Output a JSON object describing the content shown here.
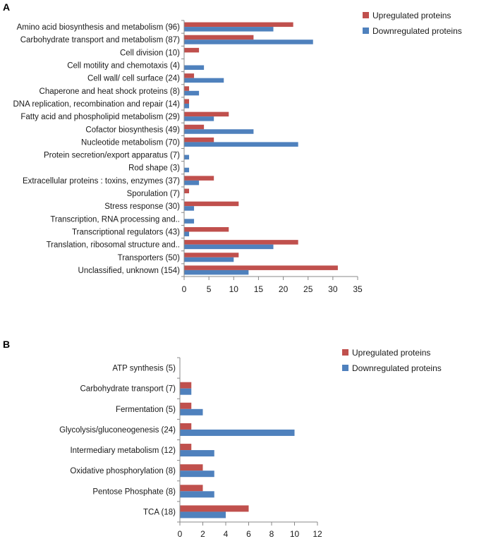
{
  "chart_data": [
    {
      "type": "bar",
      "orientation": "horizontal",
      "panel_label": "A",
      "categories": [
        "Amino acid biosynthesis and metabolism (96)",
        "Carbohydrate transport and metabolism (87)",
        "Cell division (10)",
        "Cell motility and chemotaxis (4)",
        "Cell wall/ cell surface (24)",
        "Chaperone and heat shock proteins (8)",
        "DNA replication, recombination and repair (14)",
        "Fatty acid and phospholipid metabolism (29)",
        "Cofactor biosynthesis (49)",
        "Nucleotide metabolism (70)",
        "Protein secretion/export apparatus (7)",
        "Rod shape (3)",
        "Extracellular proteins : toxins, enzymes (37)",
        "Sporulation (7)",
        "Stress response (30)",
        "Transcription, RNA processing and..",
        "Transcriptional regulators (43)",
        "Translation, ribosomal structure and..",
        "Transporters (50)",
        "Unclassified, unknown (154)"
      ],
      "series": [
        {
          "name": "Upregulated proteins",
          "color": "#c0504d",
          "values": [
            22,
            14,
            3,
            0,
            2,
            1,
            1,
            9,
            4,
            6,
            0,
            0,
            6,
            1,
            11,
            0,
            9,
            23,
            11,
            31
          ]
        },
        {
          "name": "Downregulated proteins",
          "color": "#4f81bd",
          "values": [
            18,
            26,
            0,
            4,
            8,
            3,
            1,
            6,
            14,
            23,
            1,
            1,
            3,
            0,
            2,
            2,
            1,
            18,
            10,
            13
          ]
        }
      ],
      "xlim": [
        0,
        35
      ],
      "xticks": [
        "0",
        "5",
        "10",
        "15",
        "20",
        "25",
        "30",
        "35"
      ],
      "legend_position": "top-right",
      "grid": false
    },
    {
      "type": "bar",
      "orientation": "horizontal",
      "panel_label": "B",
      "categories": [
        "ATP synthesis (5)",
        "Carbohydrate transport (7)",
        "Fermentation (5)",
        "Glycolysis/gluconeogenesis (24)",
        "Intermediary metabolism (12)",
        "Oxidative phosphorylation (8)",
        "Pentose Phosphate (8)",
        "TCA (18)"
      ],
      "series": [
        {
          "name": "Upregulated proteins",
          "color": "#c0504d",
          "values": [
            0,
            1,
            1,
            1,
            1,
            2,
            2,
            6
          ]
        },
        {
          "name": "Downregulated proteins",
          "color": "#4f81bd",
          "values": [
            0,
            1,
            2,
            10,
            3,
            3,
            3,
            4
          ]
        }
      ],
      "xlim": [
        0,
        12
      ],
      "xticks": [
        "0",
        "2",
        "4",
        "6",
        "8",
        "10",
        "12"
      ],
      "legend_position": "top-right",
      "grid": false
    }
  ]
}
